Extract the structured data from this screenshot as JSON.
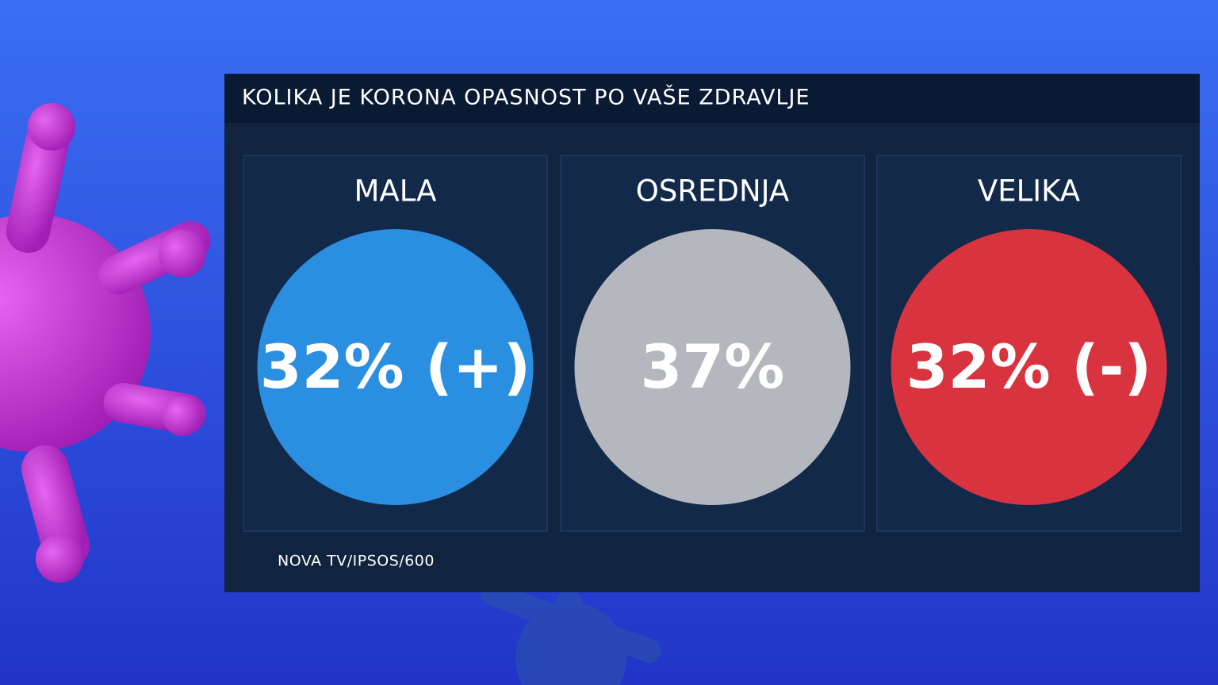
{
  "header": {
    "title": "KOLIKA JE KORONA OPASNOST PO VAŠE ZDRAVLJE"
  },
  "panels": [
    {
      "label": "MALA",
      "value": "32% (+)",
      "color": "#2a8fe0"
    },
    {
      "label": "OSREDNJA",
      "value": "37%",
      "color": "#b4b7bd"
    },
    {
      "label": "VELIKA",
      "value": "32% (-)",
      "color": "#d9333f"
    }
  ],
  "source": "NOVA TV/IPSOS/600"
}
